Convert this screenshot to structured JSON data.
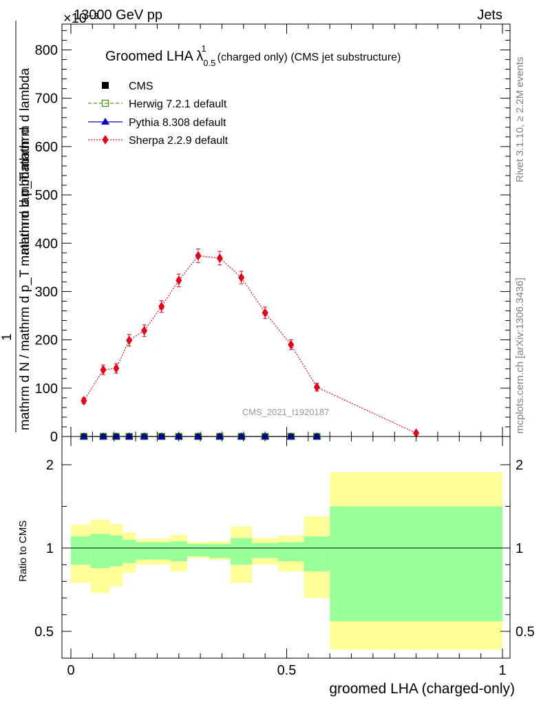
{
  "header": {
    "left": "13000 GeV pp",
    "right": "Jets",
    "exponent": "×10⁻³"
  },
  "side_text": {
    "rivet": "Rivet 3.1.10, ≥ 2.2M events",
    "site": "mcplots.cern.ch [arXiv:1306.3436]"
  },
  "chart_data": [
    {
      "type": "line",
      "title": "Groomed LHA λ¹₀.₅ (charged only) (CMS jet substructure)",
      "title_parts": {
        "main": "Groomed LHA λ",
        "sup": "1",
        "sub": "0.5",
        "rest": "(charged only) (CMS jet substructure)"
      },
      "ylabel_parts": {
        "numerator_one": "1",
        "denominator_one": "mathrm d N / mathrm d p",
        "denominator_one_sub": "T",
        "denominator_one_rest": "mathrm d lambda",
        "one": "1",
        "numerator_two": "mathrm d",
        "numerator_three": "mathrm d N / mathrm d p",
        "numerator_four": "mathrm d lambda"
      },
      "ylabel_lines": [
        "mathrm d",
        "mathrm d p_T mathrm d lambda",
        "1",
        "mathrm d N / mathrm d p_T mathrm d lambda"
      ],
      "watermark": "CMS_2021_I1920187",
      "ylim": [
        0,
        860
      ],
      "y_ticks": [
        0,
        100,
        200,
        300,
        400,
        500,
        600,
        700,
        800
      ],
      "xlim": [
        -0.01,
        1.0
      ],
      "x": [
        0.03,
        0.075,
        0.105,
        0.135,
        0.17,
        0.21,
        0.25,
        0.295,
        0.345,
        0.395,
        0.45,
        0.51,
        0.57,
        0.8
      ],
      "series": [
        {
          "name": "CMS",
          "marker": "square-filled",
          "color": "#000000",
          "values": [
            0,
            0,
            0,
            0,
            0,
            0,
            0,
            0,
            0,
            0,
            0,
            0,
            0,
            null
          ]
        },
        {
          "name": "Herwig 7.2.1 default",
          "marker": "square-open",
          "color": "#4a9c1e",
          "line": "dashed",
          "values": [
            0,
            0,
            0,
            0,
            0,
            0,
            0,
            0,
            0,
            0,
            0,
            0,
            0,
            null
          ]
        },
        {
          "name": "Pythia 8.308 default",
          "marker": "triangle",
          "color": "#0000cc",
          "line": "solid",
          "values": [
            0,
            0,
            0,
            0,
            0,
            0,
            0,
            0,
            0,
            0,
            0,
            0,
            0,
            null
          ]
        },
        {
          "name": "Sherpa 2.2.9 default",
          "marker": "diamond",
          "color": "#e8001a",
          "line": "dotted",
          "values": [
            74,
            138,
            141,
            199,
            219,
            269,
            323,
            374,
            369,
            329,
            256,
            190,
            102,
            7
          ],
          "errors": [
            6,
            10,
            10,
            12,
            12,
            12,
            13,
            14,
            14,
            13,
            12,
            10,
            8,
            3
          ]
        }
      ]
    },
    {
      "type": "area",
      "ylabel": "Ratio to CMS",
      "xlabel": "groomed LHA (charged-only)",
      "ylim": [
        0.39,
        2.34
      ],
      "y_ticks": [
        0.5,
        1,
        2
      ],
      "y_tick_labels": [
        "0.5",
        "1",
        "2"
      ],
      "x_ticks": [
        0,
        0.5,
        1
      ],
      "x_tick_labels": [
        "0",
        "0.5",
        "1"
      ],
      "reference_line": 1,
      "bins": [
        {
          "lo": 0.0,
          "hi": 0.045,
          "inner": [
            0.9,
            1.14
          ],
          "outer": [
            0.79,
            1.28
          ]
        },
        {
          "lo": 0.045,
          "hi": 0.09,
          "inner": [
            0.88,
            1.17
          ],
          "outer": [
            0.73,
            1.34
          ]
        },
        {
          "lo": 0.09,
          "hi": 0.12,
          "inner": [
            0.89,
            1.15
          ],
          "outer": [
            0.77,
            1.29
          ]
        },
        {
          "lo": 0.12,
          "hi": 0.15,
          "inner": [
            0.91,
            1.1
          ],
          "outer": [
            0.85,
            1.19
          ]
        },
        {
          "lo": 0.15,
          "hi": 0.19,
          "inner": [
            0.93,
            1.07
          ],
          "outer": [
            0.9,
            1.11
          ]
        },
        {
          "lo": 0.19,
          "hi": 0.23,
          "inner": [
            0.93,
            1.07
          ],
          "outer": [
            0.9,
            1.11
          ]
        },
        {
          "lo": 0.23,
          "hi": 0.27,
          "inner": [
            0.92,
            1.08
          ],
          "outer": [
            0.86,
            1.16
          ]
        },
        {
          "lo": 0.27,
          "hi": 0.32,
          "inner": [
            0.95,
            1.05
          ],
          "outer": [
            0.94,
            1.07
          ]
        },
        {
          "lo": 0.32,
          "hi": 0.37,
          "inner": [
            0.94,
            1.05
          ],
          "outer": [
            0.93,
            1.08
          ]
        },
        {
          "lo": 0.37,
          "hi": 0.42,
          "inner": [
            0.9,
            1.12
          ],
          "outer": [
            0.79,
            1.26
          ]
        },
        {
          "lo": 0.42,
          "hi": 0.48,
          "inner": [
            0.94,
            1.06
          ],
          "outer": [
            0.9,
            1.12
          ]
        },
        {
          "lo": 0.48,
          "hi": 0.54,
          "inner": [
            0.92,
            1.07
          ],
          "outer": [
            0.86,
            1.15
          ]
        },
        {
          "lo": 0.54,
          "hi": 0.6,
          "inner": [
            0.86,
            1.14
          ],
          "outer": [
            0.7,
            1.38
          ]
        },
        {
          "lo": 0.6,
          "hi": 1.0,
          "inner": [
            0.56,
            1.5
          ],
          "outer": [
            0.39,
            1.91
          ]
        }
      ],
      "colors": {
        "inner": "#99ff99",
        "outer": "#ffff99"
      }
    }
  ]
}
